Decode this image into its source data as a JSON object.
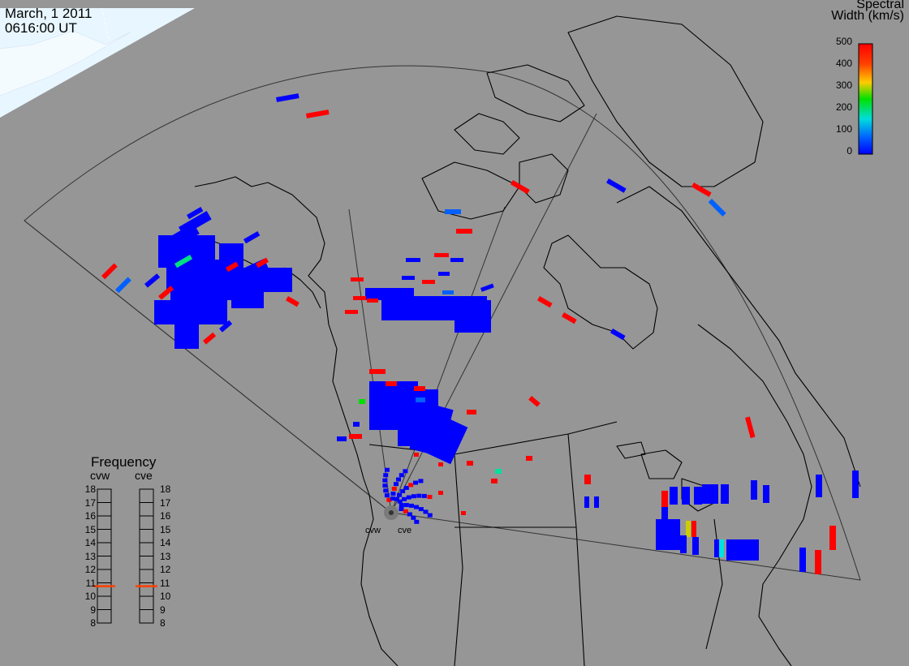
{
  "header": {
    "date": "March, 1 2011",
    "time": "0616:00 UT"
  },
  "colorbar": {
    "title_line1": "Spectral",
    "title_line2": "Width (km/s)",
    "ticks": [
      "500",
      "400",
      "300",
      "200",
      "100",
      "0"
    ],
    "colors": [
      "#ff0000",
      "#ff7a00",
      "#ffee00",
      "#00e000",
      "#00e0e0",
      "#0050ff",
      "#0000ff"
    ]
  },
  "frequency_panel": {
    "title": "Frequency",
    "columns": [
      "cvw",
      "cve"
    ],
    "scale": [
      "18",
      "17",
      "16",
      "15",
      "14",
      "13",
      "12",
      "11",
      "10",
      "9",
      "8"
    ],
    "cvw_value": 10.75,
    "cve_value": 10.75,
    "marker_color": "#ff4000"
  },
  "radar_sites": [
    "cvw",
    "cve"
  ],
  "colors": {
    "background": "#969696",
    "scatter_blue": "#0000ff",
    "scatter_red": "#ff0000",
    "scatter_lightblue": "#0060ff",
    "ice": "#e6f5ff",
    "coast": "#000000"
  }
}
